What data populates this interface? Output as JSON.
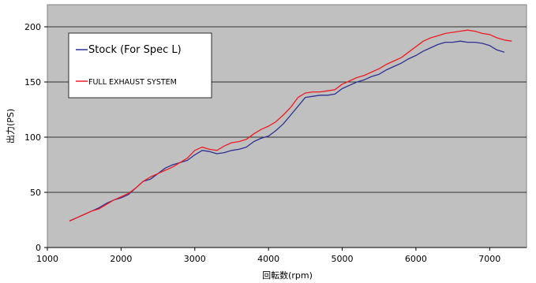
{
  "chart_data": {
    "type": "line",
    "xlabel": "回転数(rpm)",
    "ylabel": "出力(PS)",
    "xlim": [
      1000,
      7500
    ],
    "ylim": [
      0,
      220
    ],
    "xticks": [
      1000,
      2000,
      3000,
      4000,
      5000,
      6000,
      7000
    ],
    "yticks": [
      0,
      50,
      100,
      150,
      200
    ],
    "grid": "horizontal",
    "legend_position": "top-left inside plot",
    "series": [
      {
        "name": "Stock (For Spec L)",
        "color": "#2e3192",
        "x": [
          1300,
          1400,
          1500,
          1600,
          1700,
          1800,
          1900,
          2000,
          2100,
          2200,
          2300,
          2400,
          2500,
          2600,
          2700,
          2800,
          2900,
          3000,
          3100,
          3200,
          3300,
          3400,
          3500,
          3600,
          3700,
          3800,
          3900,
          4000,
          4100,
          4200,
          4300,
          4400,
          4500,
          4600,
          4700,
          4800,
          4900,
          5000,
          5100,
          5200,
          5300,
          5400,
          5500,
          5600,
          5700,
          5800,
          5900,
          6000,
          6100,
          6200,
          6300,
          6400,
          6500,
          6600,
          6700,
          6800,
          6900,
          7000,
          7100,
          7200
        ],
        "y": [
          24,
          27,
          30,
          33,
          36,
          40,
          43,
          45,
          48,
          54,
          60,
          62,
          67,
          72,
          75,
          77,
          79,
          84,
          88,
          87,
          85,
          86,
          88,
          89,
          91,
          96,
          99,
          101,
          106,
          112,
          120,
          128,
          136,
          137,
          138,
          138,
          139,
          144,
          147,
          150,
          152,
          155,
          157,
          161,
          164,
          167,
          171,
          174,
          178,
          181,
          184,
          186,
          186,
          187,
          186,
          186,
          185,
          183,
          179,
          177
        ],
        "legend_size": "large"
      },
      {
        "name": "FULL EXHAUST SYSTEM",
        "color": "#ed1c24",
        "x": [
          1300,
          1400,
          1500,
          1600,
          1700,
          1800,
          1900,
          2000,
          2100,
          2200,
          2300,
          2400,
          2500,
          2600,
          2700,
          2800,
          2900,
          3000,
          3100,
          3200,
          3300,
          3400,
          3500,
          3600,
          3700,
          3800,
          3900,
          4000,
          4100,
          4200,
          4300,
          4400,
          4500,
          4600,
          4700,
          4800,
          4900,
          5000,
          5100,
          5200,
          5300,
          5400,
          5500,
          5600,
          5700,
          5800,
          5900,
          6000,
          6100,
          6200,
          6300,
          6400,
          6500,
          6600,
          6700,
          6800,
          6900,
          7000,
          7100,
          7200,
          7300
        ],
        "y": [
          24,
          27,
          30,
          33,
          35,
          39,
          43,
          46,
          49,
          54,
          60,
          64,
          67,
          70,
          73,
          77,
          81,
          88,
          91,
          89,
          88,
          92,
          95,
          96,
          98,
          103,
          107,
          110,
          114,
          120,
          127,
          136,
          140,
          141,
          141,
          142,
          143,
          148,
          151,
          154,
          156,
          159,
          162,
          166,
          169,
          172,
          177,
          182,
          187,
          190,
          192,
          194,
          195,
          196,
          197,
          196,
          194,
          193,
          190,
          188,
          187
        ],
        "legend_size": "small"
      }
    ]
  }
}
